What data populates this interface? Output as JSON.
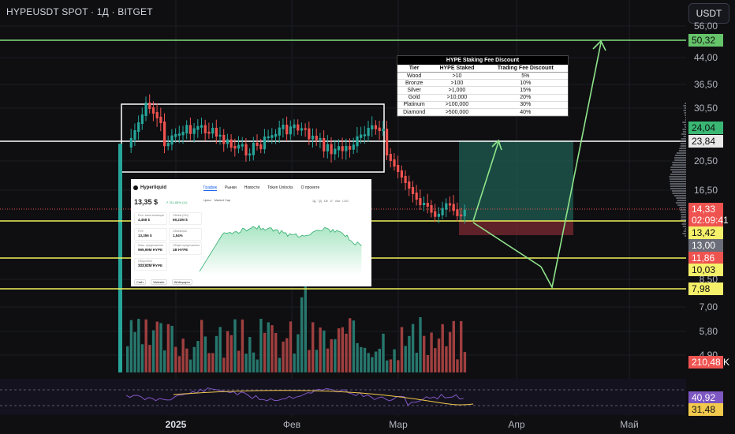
{
  "header": {
    "symbol_title": "HYPEUSDT SPOT · 1Д · BITGET",
    "currency": "USDT"
  },
  "colors": {
    "green": "#26a69a",
    "red": "#ef5350",
    "yellow": "#f2f25a",
    "line_green": "#7ee07a",
    "white": "#ffffff"
  },
  "price_axis": [
    "56,00",
    "44,00",
    "36,50",
    "30,50",
    "20,50",
    "16,50",
    "8,50",
    "7,00",
    "5,80",
    "4,90"
  ],
  "price_tags": [
    {
      "label": "50,32",
      "color": "#66c46a"
    },
    {
      "label": "24,04",
      "color": "#3ab873"
    },
    {
      "label": "23,84",
      "color": "#e8e8e8"
    },
    {
      "label": "14,33",
      "color": "#ef5350"
    },
    {
      "label": "02:09:41",
      "color": "#ef5350"
    },
    {
      "label": "13,42",
      "color": "#f5f069"
    },
    {
      "label": "13,00",
      "color": "#6b6e78"
    },
    {
      "label": "11,86",
      "color": "#ef5350"
    },
    {
      "label": "10,03",
      "color": "#f5f069"
    },
    {
      "label": "7,98",
      "color": "#f5f069"
    },
    {
      "label": "210,48 K",
      "color": "#ef5350"
    },
    {
      "label": "40,92",
      "color": "#7e57c2"
    },
    {
      "label": "31,48",
      "color": "#f2c94c"
    }
  ],
  "time_axis": [
    {
      "label": "2025",
      "bold": true
    },
    {
      "label": "Фев",
      "bold": false
    },
    {
      "label": "Мар",
      "bold": false
    },
    {
      "label": "Апр",
      "bold": false
    },
    {
      "label": "Май",
      "bold": false
    }
  ],
  "staking_table": {
    "title": "HYPE Staking Fee Discount",
    "columns": [
      "Tier",
      "HYPE Staked",
      "Trading Fee Discount"
    ],
    "rows": [
      [
        "Wood",
        ">10",
        "5%"
      ],
      [
        "Bronze",
        ">100",
        "10%"
      ],
      [
        "Silver",
        ">1,000",
        "15%"
      ],
      [
        "Gold",
        ">10,000",
        "20%"
      ],
      [
        "Platinum",
        ">100,000",
        "30%"
      ],
      [
        "Diamond",
        ">500,000",
        "40%"
      ]
    ]
  },
  "inset_card": {
    "name": "Hyperliquid",
    "tabs": [
      "График",
      "Рынки",
      "Новости",
      "Token Unlocks",
      "О проекте"
    ],
    "price": "13,35 $",
    "change": "↗ 311,65% (1г)",
    "controls": [
      "Цена",
      "Market Cap"
    ],
    "ranges": [
      "1Д",
      "7Д",
      "1М",
      "1Г",
      "Все",
      "LOG"
    ],
    "stats": [
      {
        "k": "Рын. капитализация",
        "v": "4,458 $"
      },
      {
        "k": "Объём (24ч)",
        "v": "69,22M $"
      },
      {
        "k": "FDV",
        "v": "13,356 $"
      },
      {
        "k": "Объём/Кап",
        "v": "1,54%"
      },
      {
        "k": "Макс. предложение",
        "v": "999,99M HYPE"
      },
      {
        "k": "Общее предложение",
        "v": "1B HYPE"
      },
      {
        "k": "Оборотное предложение",
        "v": "333,92M HYPE"
      }
    ],
    "footer": [
      "Сайт",
      "Website",
      "Whitepaper"
    ]
  }
}
